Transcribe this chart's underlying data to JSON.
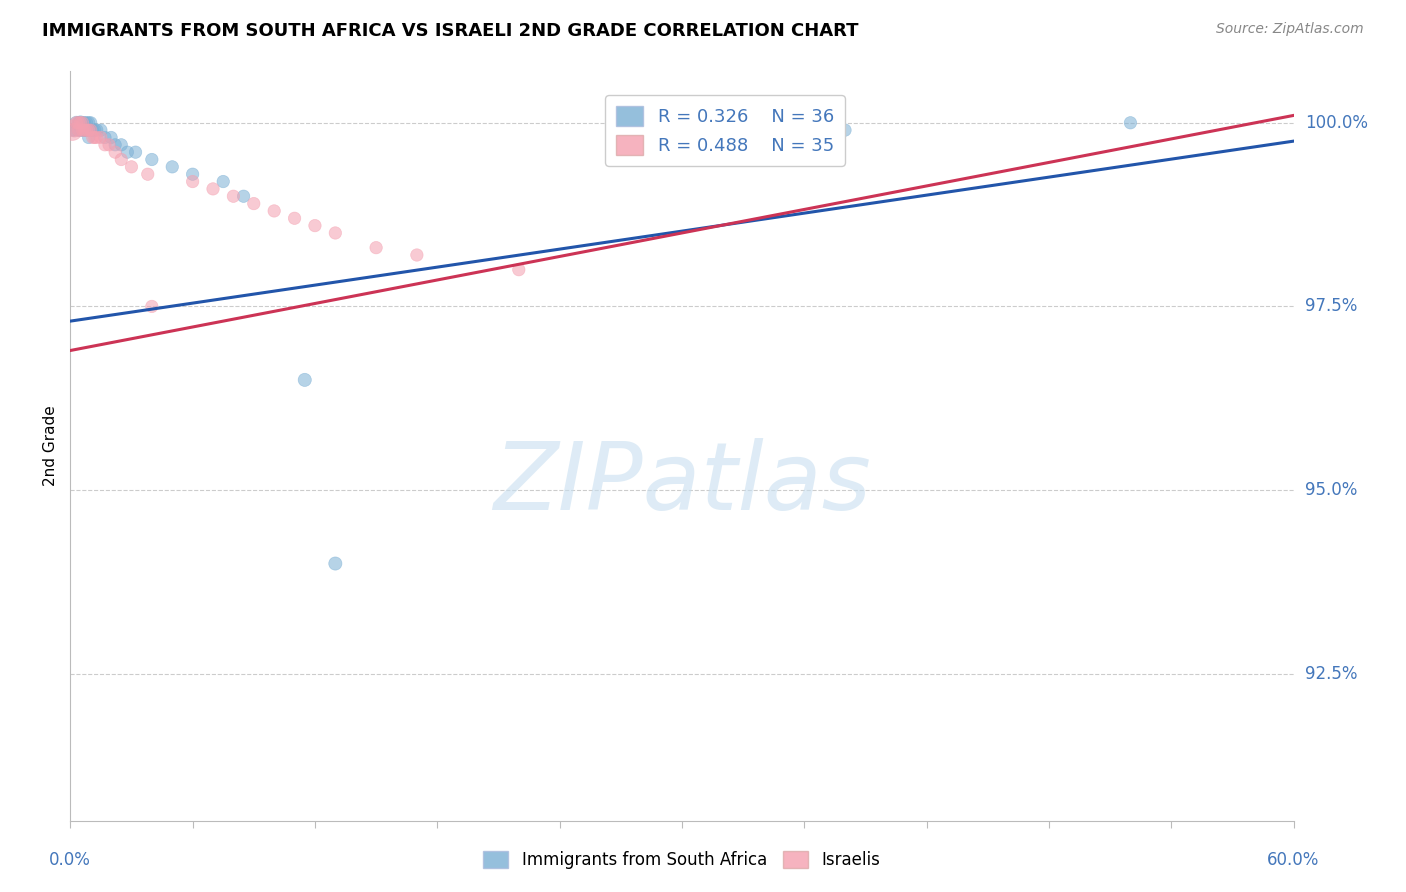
{
  "title": "IMMIGRANTS FROM SOUTH AFRICA VS ISRAELI 2ND GRADE CORRELATION CHART",
  "source": "Source: ZipAtlas.com",
  "ylabel": "2nd Grade",
  "xlim": [
    0.0,
    0.6
  ],
  "ylim": [
    0.905,
    1.007
  ],
  "yticks": [
    0.925,
    0.95,
    0.975,
    1.0
  ],
  "ytick_labels": [
    "92.5%",
    "95.0%",
    "97.5%",
    "100.0%"
  ],
  "xtick_vals": [
    0.0,
    0.06,
    0.12,
    0.18,
    0.24,
    0.3,
    0.36,
    0.42,
    0.48,
    0.54,
    0.6
  ],
  "blue_R": 0.326,
  "blue_N": 36,
  "pink_R": 0.488,
  "pink_N": 35,
  "blue_color": "#7BAFD4",
  "pink_color": "#F4A0B0",
  "trend_blue": "#2255AA",
  "trend_pink": "#CC3355",
  "axis_color": "#4477BB",
  "legend_box_color": "#cccccc",
  "blue_trend_x0": 0.0,
  "blue_trend_y0": 0.973,
  "blue_trend_x1": 0.6,
  "blue_trend_y1": 0.9975,
  "pink_trend_x0": 0.0,
  "pink_trend_y0": 0.969,
  "pink_trend_x1": 0.6,
  "pink_trend_y1": 1.001,
  "blue_points": [
    [
      0.001,
      0.999,
      80
    ],
    [
      0.002,
      0.999,
      80
    ],
    [
      0.003,
      1.0,
      90
    ],
    [
      0.004,
      1.0,
      80
    ],
    [
      0.004,
      0.999,
      80
    ],
    [
      0.005,
      1.0,
      100
    ],
    [
      0.005,
      0.999,
      80
    ],
    [
      0.006,
      1.0,
      80
    ],
    [
      0.006,
      0.999,
      80
    ],
    [
      0.007,
      1.0,
      80
    ],
    [
      0.007,
      0.999,
      80
    ],
    [
      0.008,
      1.0,
      80
    ],
    [
      0.008,
      0.999,
      80
    ],
    [
      0.009,
      1.0,
      80
    ],
    [
      0.009,
      0.998,
      80
    ],
    [
      0.01,
      1.0,
      80
    ],
    [
      0.01,
      0.999,
      80
    ],
    [
      0.011,
      0.999,
      80
    ],
    [
      0.012,
      0.999,
      80
    ],
    [
      0.013,
      0.999,
      80
    ],
    [
      0.015,
      0.999,
      80
    ],
    [
      0.017,
      0.998,
      80
    ],
    [
      0.02,
      0.998,
      80
    ],
    [
      0.022,
      0.997,
      80
    ],
    [
      0.025,
      0.997,
      80
    ],
    [
      0.028,
      0.996,
      80
    ],
    [
      0.032,
      0.996,
      80
    ],
    [
      0.04,
      0.995,
      80
    ],
    [
      0.05,
      0.994,
      80
    ],
    [
      0.06,
      0.993,
      80
    ],
    [
      0.075,
      0.992,
      80
    ],
    [
      0.085,
      0.99,
      80
    ],
    [
      0.115,
      0.965,
      90
    ],
    [
      0.13,
      0.94,
      90
    ],
    [
      0.38,
      0.999,
      80
    ],
    [
      0.52,
      1.0,
      80
    ]
  ],
  "pink_points": [
    [
      0.001,
      0.999,
      220
    ],
    [
      0.002,
      0.999,
      100
    ],
    [
      0.003,
      1.0,
      80
    ],
    [
      0.004,
      1.0,
      80
    ],
    [
      0.004,
      0.999,
      80
    ],
    [
      0.005,
      1.0,
      80
    ],
    [
      0.006,
      1.0,
      80
    ],
    [
      0.006,
      0.999,
      80
    ],
    [
      0.007,
      0.999,
      80
    ],
    [
      0.008,
      0.999,
      80
    ],
    [
      0.009,
      0.999,
      80
    ],
    [
      0.01,
      0.999,
      80
    ],
    [
      0.011,
      0.998,
      80
    ],
    [
      0.012,
      0.998,
      80
    ],
    [
      0.013,
      0.998,
      80
    ],
    [
      0.015,
      0.998,
      80
    ],
    [
      0.017,
      0.997,
      80
    ],
    [
      0.019,
      0.997,
      80
    ],
    [
      0.022,
      0.996,
      80
    ],
    [
      0.025,
      0.995,
      80
    ],
    [
      0.03,
      0.994,
      80
    ],
    [
      0.038,
      0.993,
      80
    ],
    [
      0.04,
      0.975,
      80
    ],
    [
      0.06,
      0.992,
      80
    ],
    [
      0.07,
      0.991,
      80
    ],
    [
      0.08,
      0.99,
      80
    ],
    [
      0.09,
      0.989,
      80
    ],
    [
      0.1,
      0.988,
      80
    ],
    [
      0.11,
      0.987,
      80
    ],
    [
      0.12,
      0.986,
      80
    ],
    [
      0.13,
      0.985,
      80
    ],
    [
      0.15,
      0.983,
      80
    ],
    [
      0.17,
      0.982,
      80
    ],
    [
      0.22,
      0.98,
      80
    ],
    [
      0.35,
      0.999,
      80
    ]
  ],
  "watermark_text": "ZIPatlas",
  "watermark_color": "#c8dff0",
  "bottom_legend_labels": [
    "Immigrants from South Africa",
    "Israelis"
  ]
}
